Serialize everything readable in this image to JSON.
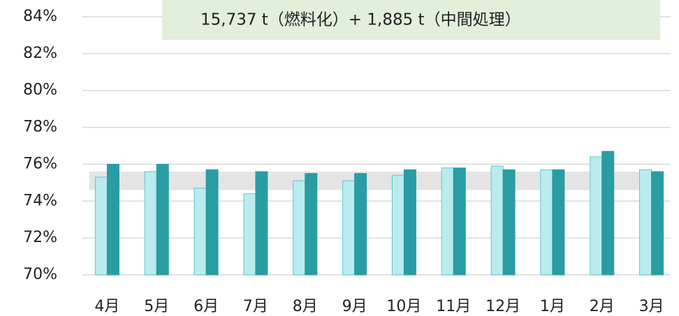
{
  "chart_data": {
    "type": "bar",
    "annotation": "15,737 t（燃料化）+ 1,885 t（中間処理）",
    "categories": [
      "4月",
      "5月",
      "6月",
      "7月",
      "8月",
      "9月",
      "10月",
      "11月",
      "12月",
      "1月",
      "2月",
      "3月"
    ],
    "series": [
      {
        "color": "#b9ecef",
        "values": [
          75.3,
          75.6,
          74.7,
          74.4,
          75.1,
          75.1,
          75.4,
          75.8,
          75.9,
          75.7,
          76.4,
          75.7
        ]
      },
      {
        "color": "#2a9ca4",
        "values": [
          76.0,
          76.0,
          75.7,
          75.6,
          75.5,
          75.5,
          75.7,
          75.8,
          75.7,
          75.7,
          76.7,
          75.6
        ]
      }
    ],
    "band": [
      74.6,
      75.6
    ],
    "ylim": [
      70,
      84
    ],
    "yticks": [
      {
        "value": 70,
        "label": "70%"
      },
      {
        "value": 72,
        "label": "72%"
      },
      {
        "value": 74,
        "label": "74%"
      },
      {
        "value": 76,
        "label": "76%"
      },
      {
        "value": 78,
        "label": "78%"
      },
      {
        "value": 80,
        "label": "80%"
      },
      {
        "value": 82,
        "label": "82%"
      },
      {
        "value": 84,
        "label": "84%"
      }
    ],
    "grid": true
  }
}
